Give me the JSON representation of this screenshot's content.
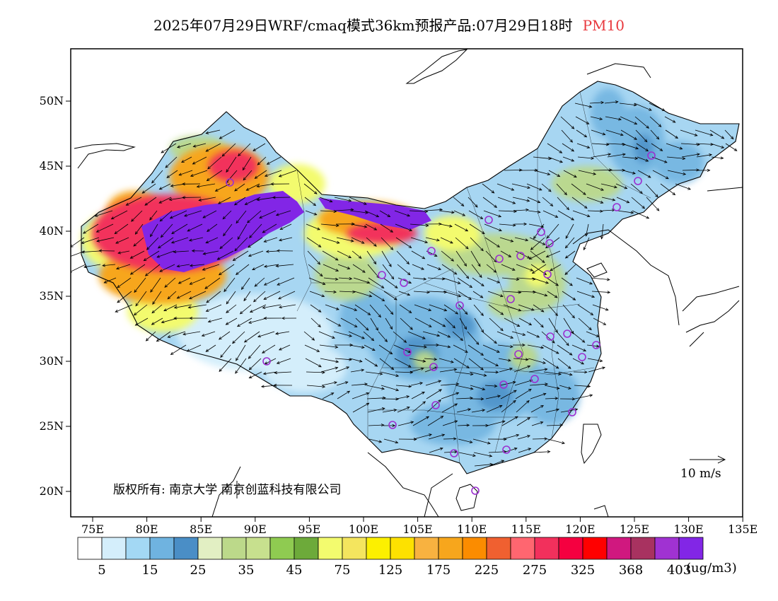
{
  "title": {
    "text": "2025年07月29日WRF/cmaq模式36km预报产品:07月29日18时",
    "pollutant": "PM10"
  },
  "axes": {
    "lat_labels": [
      "50N",
      "45N",
      "40N",
      "35N",
      "30N",
      "25N",
      "20N"
    ],
    "lon_labels": [
      "75E",
      "80E",
      "85E",
      "90E",
      "95E",
      "100E",
      "105E",
      "110E",
      "115E",
      "120E",
      "125E",
      "130E",
      "135E"
    ],
    "lon_range": [
      73,
      135
    ],
    "lat_range": [
      18,
      54
    ]
  },
  "copyright": "版权所有: 南京大学 南京创蓝科技有限公司",
  "wind_scale": {
    "label": "10 m/s"
  },
  "colorbar": {
    "colors": [
      "#ffffff",
      "#d4eefb",
      "#a3d8f4",
      "#6fb3e0",
      "#4a8ec6",
      "#e2efc3",
      "#bcd98a",
      "#c7e08e",
      "#8fcb51",
      "#6daa3a",
      "#f3fb6e",
      "#f4e55e",
      "#fcf000",
      "#fde100",
      "#f8b240",
      "#f7a61c",
      "#fb8c00",
      "#f06030",
      "#ff6670",
      "#f2305c",
      "#f50040",
      "#ff0000",
      "#d0187f",
      "#a83260",
      "#a032d2",
      "#8226e6"
    ],
    "labels": [
      "5",
      "15",
      "25",
      "35",
      "45",
      "75",
      "125",
      "175",
      "225",
      "275",
      "325",
      "368",
      "403"
    ],
    "unit": "(ug/m3)"
  },
  "colors": {
    "station_marker": "#9b2fd0",
    "title_pollutant": "#e8383d"
  }
}
